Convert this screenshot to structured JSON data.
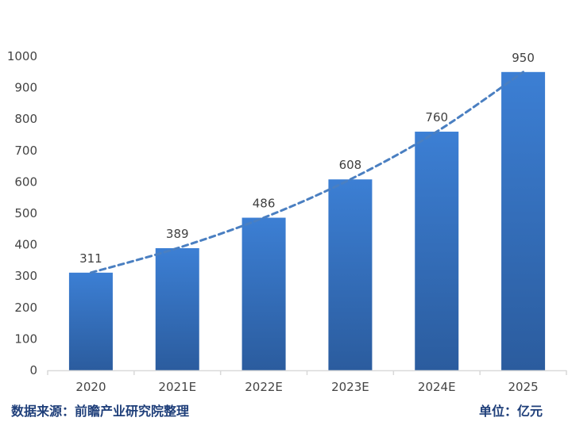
{
  "chart_data": {
    "type": "bar",
    "categories": [
      "2020",
      "2021E",
      "2022E",
      "2023E",
      "2024E",
      "2025"
    ],
    "values": [
      311,
      389,
      486,
      608,
      760,
      950
    ],
    "data_labels": [
      "311",
      "389",
      "486",
      "608",
      "760",
      "950"
    ],
    "y_ticks": [
      0,
      100,
      200,
      300,
      400,
      500,
      600,
      700,
      800,
      900,
      1000
    ],
    "ylim": [
      0,
      1000
    ],
    "trendline": "dashed",
    "grid": false,
    "bar_color_top": "#3c7fd4",
    "bar_color_bottom": "#2b5c9e",
    "trend_color": "#4a7fc1",
    "axis_color": "#d9d9d9"
  },
  "footer": {
    "source": "数据来源：前瞻产业研究院整理",
    "unit": "单位：亿元"
  }
}
